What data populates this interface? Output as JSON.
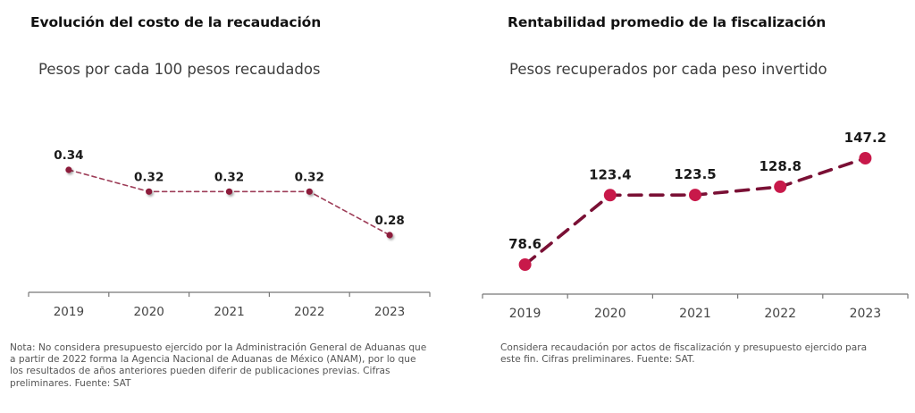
{
  "chart_data": [
    {
      "type": "line",
      "title": "Evolución del costo de la recaudación",
      "subtitle": "Pesos por cada 100 pesos recaudados",
      "categories": [
        "2019",
        "2020",
        "2021",
        "2022",
        "2023"
      ],
      "series": [
        {
          "name": "Costo de la recaudación",
          "values": [
            0.34,
            0.32,
            0.32,
            0.32,
            0.28
          ],
          "labels": [
            "0.34",
            "0.32",
            "0.32",
            "0.32",
            "0.28"
          ]
        }
      ],
      "xlabel": "",
      "ylabel": "",
      "ylim": [
        0.24,
        0.35
      ],
      "grid": false,
      "legend": "none",
      "line_style": "dashed",
      "color": "#8c1a3a",
      "note": "Nota: No considera presupuesto ejercido por la Administración General de Aduanas que a partir de 2022 forma la Agencia Nacional de Aduanas de México (ANAM), por lo que los resultados de años anteriores pueden diferir de publicaciones previas.   Cifras preliminares. Fuente: SAT"
    },
    {
      "type": "line",
      "title": "Rentabilidad promedio de la fiscalización",
      "subtitle": "Pesos recuperados por cada peso invertido",
      "categories": [
        "2019",
        "2020",
        "2021",
        "2022",
        "2023"
      ],
      "series": [
        {
          "name": "Rentabilidad",
          "values": [
            78.6,
            123.4,
            123.5,
            128.8,
            147.2
          ],
          "labels": [
            "78.6",
            "123.4",
            "123.5",
            "128.8",
            "147.2"
          ]
        }
      ],
      "xlabel": "",
      "ylabel": "",
      "ylim": [
        60,
        155
      ],
      "grid": false,
      "legend": "none",
      "line_style": "dashed",
      "color": "#7a1035",
      "marker_color": "#c8194a",
      "note": "Considera recaudación por actos de fiscalización y presupuesto ejercido para este fin. Cifras preliminares. Fuente: SAT."
    }
  ]
}
